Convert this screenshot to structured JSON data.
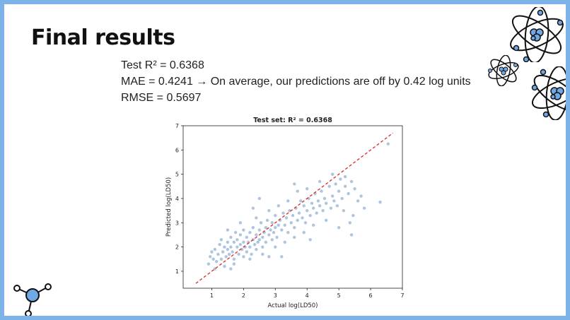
{
  "slide": {
    "title": "Final results",
    "metrics": [
      "Test R² = 0.6368",
      "MAE = 0.4241 → On average, our predictions are off by 0.42 log units",
      "RMSE = 0.5697"
    ]
  },
  "decorations": {
    "atom_icons": [
      "atom-icon",
      "atom-icon",
      "atom-icon"
    ],
    "molecule_icon": "molecule-icon",
    "icon_fill": "#6fa8e6",
    "icon_stroke": "#111111"
  },
  "chart_data": {
    "type": "scatter",
    "title": "Test set: R² = 0.6368",
    "xlabel": "Actual log(LD50)",
    "ylabel": "Predicted log(LD50)",
    "xlim": [
      0.1,
      7
    ],
    "ylim": [
      0.3,
      7
    ],
    "xticks": [
      1,
      2,
      3,
      4,
      5,
      6,
      7
    ],
    "yticks": [
      1,
      2,
      3,
      4,
      5,
      6,
      7
    ],
    "grid": false,
    "point_color": "#4a7fb5",
    "reference_line": {
      "x": [
        0.5,
        6.7
      ],
      "y": [
        0.5,
        6.7
      ],
      "color": "#dd2222",
      "style": "dashed"
    },
    "series": [
      {
        "points": [
          [
            0.9,
            1.3
          ],
          [
            0.95,
            1.6
          ],
          [
            1.0,
            1.8
          ],
          [
            1.05,
            1.5
          ],
          [
            1.1,
            1.9
          ],
          [
            1.15,
            1.4
          ],
          [
            1.2,
            1.7
          ],
          [
            1.25,
            2.1
          ],
          [
            1.3,
            1.5
          ],
          [
            1.35,
            1.8
          ],
          [
            1.4,
            2.0
          ],
          [
            1.45,
            1.6
          ],
          [
            1.5,
            2.2
          ],
          [
            1.5,
            1.9
          ],
          [
            1.55,
            1.7
          ],
          [
            1.6,
            2.4
          ],
          [
            1.6,
            2.0
          ],
          [
            1.65,
            1.8
          ],
          [
            1.7,
            2.2
          ],
          [
            1.7,
            1.5
          ],
          [
            1.75,
            2.6
          ],
          [
            1.8,
            2.0
          ],
          [
            1.8,
            2.3
          ],
          [
            1.85,
            1.7
          ],
          [
            1.9,
            2.1
          ],
          [
            1.9,
            2.5
          ],
          [
            1.95,
            1.9
          ],
          [
            2.0,
            2.2
          ],
          [
            2.0,
            1.6
          ],
          [
            2.0,
            2.7
          ],
          [
            2.05,
            2.0
          ],
          [
            2.1,
            2.4
          ],
          [
            2.1,
            1.8
          ],
          [
            2.15,
            2.2
          ],
          [
            2.2,
            2.6
          ],
          [
            2.2,
            2.0
          ],
          [
            2.25,
            1.7
          ],
          [
            2.3,
            2.3
          ],
          [
            2.3,
            2.8
          ],
          [
            2.35,
            2.1
          ],
          [
            2.4,
            2.5
          ],
          [
            2.4,
            1.9
          ],
          [
            2.45,
            2.2
          ],
          [
            2.5,
            2.7
          ],
          [
            2.5,
            2.3
          ],
          [
            2.55,
            3.0
          ],
          [
            2.6,
            2.4
          ],
          [
            2.6,
            2.0
          ],
          [
            2.65,
            2.6
          ],
          [
            2.7,
            2.8
          ],
          [
            2.7,
            2.2
          ],
          [
            2.75,
            3.1
          ],
          [
            2.8,
            2.5
          ],
          [
            2.85,
            2.7
          ],
          [
            2.9,
            2.3
          ],
          [
            2.9,
            3.0
          ],
          [
            2.95,
            2.6
          ],
          [
            3.0,
            2.8
          ],
          [
            3.0,
            3.3
          ],
          [
            3.05,
            2.4
          ],
          [
            3.1,
            2.9
          ],
          [
            3.15,
            3.1
          ],
          [
            3.2,
            2.7
          ],
          [
            3.25,
            3.4
          ],
          [
            3.3,
            2.9
          ],
          [
            3.35,
            3.2
          ],
          [
            3.4,
            2.6
          ],
          [
            3.45,
            3.5
          ],
          [
            3.5,
            3.0
          ],
          [
            3.55,
            3.3
          ],
          [
            3.6,
            2.8
          ],
          [
            3.65,
            3.6
          ],
          [
            3.7,
            3.1
          ],
          [
            3.75,
            3.4
          ],
          [
            3.8,
            3.9
          ],
          [
            3.85,
            3.2
          ],
          [
            3.9,
            3.7
          ],
          [
            3.95,
            3.0
          ],
          [
            4.0,
            3.5
          ],
          [
            4.05,
            4.0
          ],
          [
            4.1,
            3.3
          ],
          [
            4.15,
            3.8
          ],
          [
            4.2,
            3.6
          ],
          [
            4.25,
            4.2
          ],
          [
            4.3,
            3.4
          ],
          [
            4.35,
            3.9
          ],
          [
            4.4,
            3.7
          ],
          [
            4.45,
            4.3
          ],
          [
            4.5,
            3.5
          ],
          [
            4.55,
            4.0
          ],
          [
            4.6,
            3.8
          ],
          [
            4.7,
            4.5
          ],
          [
            4.75,
            3.6
          ],
          [
            4.8,
            4.1
          ],
          [
            4.85,
            3.9
          ],
          [
            4.9,
            4.6
          ],
          [
            4.95,
            3.7
          ],
          [
            5.0,
            4.3
          ],
          [
            5.05,
            4.8
          ],
          [
            5.1,
            4.0
          ],
          [
            5.15,
            3.5
          ],
          [
            5.2,
            4.5
          ],
          [
            5.3,
            4.2
          ],
          [
            5.35,
            3.0
          ],
          [
            5.4,
            4.7
          ],
          [
            5.45,
            3.3
          ],
          [
            5.5,
            4.4
          ],
          [
            5.6,
            3.9
          ],
          [
            5.7,
            4.1
          ],
          [
            5.8,
            3.6
          ],
          [
            6.3,
            3.85
          ],
          [
            6.55,
            6.25
          ],
          [
            1.5,
            2.7
          ],
          [
            1.4,
            1.2
          ],
          [
            1.3,
            2.3
          ],
          [
            1.7,
            1.3
          ],
          [
            1.9,
            3.0
          ],
          [
            2.2,
            1.5
          ],
          [
            2.4,
            3.2
          ],
          [
            2.6,
            1.7
          ],
          [
            2.8,
            3.5
          ],
          [
            3.0,
            2.0
          ],
          [
            3.1,
            3.7
          ],
          [
            3.3,
            2.2
          ],
          [
            3.4,
            3.9
          ],
          [
            3.6,
            2.4
          ],
          [
            3.7,
            4.3
          ],
          [
            3.9,
            2.6
          ],
          [
            4.0,
            4.4
          ],
          [
            4.2,
            2.9
          ],
          [
            4.4,
            4.7
          ],
          [
            4.6,
            3.1
          ],
          [
            4.8,
            5.0
          ],
          [
            5.0,
            2.8
          ],
          [
            5.2,
            4.9
          ],
          [
            5.4,
            2.5
          ],
          [
            2.5,
            4.0
          ],
          [
            3.2,
            1.6
          ],
          [
            1.1,
            1.1
          ],
          [
            1.6,
            1.1
          ],
          [
            2.3,
            3.6
          ],
          [
            2.8,
            1.6
          ],
          [
            3.6,
            4.6
          ],
          [
            4.1,
            2.3
          ]
        ]
      }
    ]
  }
}
